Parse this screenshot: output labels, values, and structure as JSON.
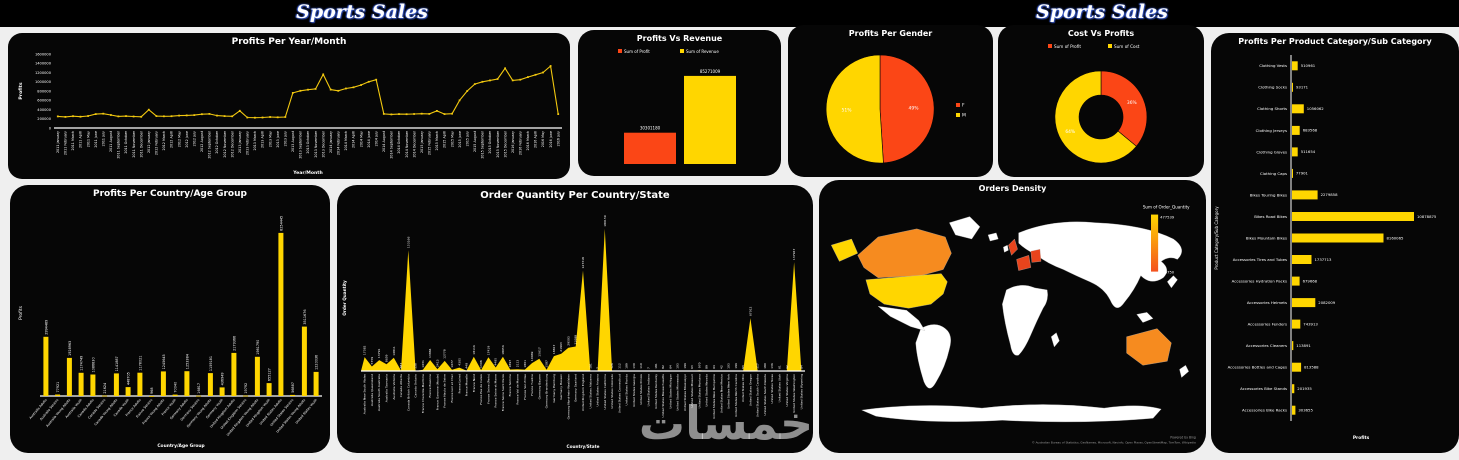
{
  "page": {
    "title_left": "Sports Sales",
    "title_right": "Sports Sales",
    "watermark": "خمسات"
  },
  "colors": {
    "yellow": "#FFD600",
    "orange": "#FB4616",
    "map_orange": "#F68B1F",
    "map_red_orange": "#E8441C",
    "white": "#FFFFFF",
    "card_bg": "#060606"
  },
  "chart_data": {
    "profits_per_month": {
      "type": "line",
      "title": "Profits Per Year/Month",
      "xlabel": "Year/Month",
      "ylabel": "Profits",
      "ylim": [
        0,
        1600000
      ],
      "ytick": 200000,
      "color": "#F2C80F",
      "categories": [
        "2011 January",
        "2011 February",
        "2011 March",
        "2011 April",
        "2011 May",
        "2011 June",
        "2011 July",
        "2011 August",
        "2011 September",
        "2011 October",
        "2011 November",
        "2011 December",
        "2012 January",
        "2012 February",
        "2012 March",
        "2012 April",
        "2012 May",
        "2012 June",
        "2012 July",
        "2012 August",
        "2012 September",
        "2012 October",
        "2012 November",
        "2012 December",
        "2013 January",
        "2013 February",
        "2013 March",
        "2013 April",
        "2013 May",
        "2013 June",
        "2013 July",
        "2013 August",
        "2013 September",
        "2013 October",
        "2013 November",
        "2013 December",
        "2014 January",
        "2014 February",
        "2014 March",
        "2014 April",
        "2014 May",
        "2014 June",
        "2014 July",
        "2014 August",
        "2014 September",
        "2014 October",
        "2014 November",
        "2014 December",
        "2015 January",
        "2015 February",
        "2015 March",
        "2015 April",
        "2015 May",
        "2015 June",
        "2015 July",
        "2015 August",
        "2015 September",
        "2015 October",
        "2015 November",
        "2015 December",
        "2016 January",
        "2016 February",
        "2016 March",
        "2016 April",
        "2016 May",
        "2016 June",
        "2016 July"
      ],
      "values": [
        250000,
        240000,
        255000,
        245000,
        260000,
        300000,
        310000,
        280000,
        250000,
        258000,
        248000,
        242000,
        395000,
        258000,
        252000,
        256000,
        268000,
        272000,
        278000,
        298000,
        305000,
        268000,
        258000,
        252000,
        372000,
        228000,
        222000,
        228000,
        238000,
        232000,
        238000,
        760000,
        805000,
        828000,
        845000,
        1160000,
        830000,
        805000,
        855000,
        880000,
        930000,
        1000000,
        1045000,
        305000,
        295000,
        300000,
        298000,
        302000,
        310000,
        305000,
        370000,
        300000,
        310000,
        600000,
        800000,
        950000,
        1000000,
        1030000,
        1060000,
        1290000,
        1030000,
        1045000,
        1100000,
        1150000,
        1200000,
        1340000,
        300000
      ]
    },
    "profits_vs_revenue": {
      "type": "bar",
      "title": "Profits Vs Revenue",
      "categories": [
        "Sum of Profit",
        "Sum of Revenue"
      ],
      "values": [
        30301180,
        85271009
      ],
      "bar_colors": [
        "#FB4616",
        "#FFD600"
      ],
      "legend": [
        {
          "label": "Sum of Profit",
          "color": "#FB4616"
        },
        {
          "label": "Sum of Revenue",
          "color": "#FFD600"
        }
      ]
    },
    "profits_per_gender": {
      "type": "pie",
      "title": "Profits Per Gender",
      "slices": [
        {
          "label": "F",
          "pct": 49,
          "color": "#FB4616"
        },
        {
          "label": "M",
          "pct": 51,
          "color": "#FFD600"
        }
      ]
    },
    "cost_vs_profits": {
      "type": "donut",
      "title": "Cost Vs Profits",
      "slices": [
        {
          "label": "Sum of Profit",
          "pct": 36,
          "color": "#FB4616"
        },
        {
          "label": "Sum of Cost",
          "pct": 64,
          "color": "#FFD600"
        }
      ]
    },
    "profits_per_subcategory": {
      "type": "hbar",
      "title": "Profits Per Product Category/Sub Category",
      "xlabel": "Profits",
      "ylabel": "Product Category/Sub Category",
      "color": "#FFD600",
      "categories": [
        "Clothing Vests",
        "Clothing Socks",
        "Clothing Shorts",
        "Clothing Jerseys",
        "Clothing Gloves",
        "Clothing Caps",
        "Bikes Touring Bikes",
        "Bikes Road Bikes",
        "Bikes Mountain Bikes",
        "Accessories Tires and Tubes",
        "Accessories Hydration Packs",
        "Accessories Helmets",
        "Accessories Fenders",
        "Accessories Cleaners",
        "Accessories Bottles and Cages",
        "Accessories Bike Stands",
        "Accessories Bike Racks"
      ],
      "values": [
        510961,
        93171,
        1056062,
        683568,
        511654,
        77901,
        2279858,
        10878875,
        8160065,
        1737713,
        679668,
        2082009,
        743913,
        113891,
        813588,
        201935,
        303655
      ]
    },
    "profits_per_age_group": {
      "type": "vbar",
      "title": "Profits Per Country/Age Group",
      "xlabel": "Country/Age Group",
      "ylabel": "Profits",
      "color": "#FFD600",
      "categories": [
        "Australia Adults",
        "Australia Seniors",
        "Australia Young Adults",
        "Australia Youth",
        "Canada Adults",
        "Canada Seniors",
        "Canada Young Adults",
        "Canada Youth",
        "France Adults",
        "France Seniors",
        "France Young Adults",
        "France Youth",
        "Germany Adults",
        "Germany Seniors",
        "Germany Young Adults",
        "Germany Youth",
        "United Kingdom Adults",
        "United Kingdom Seniors",
        "United Kingdom Young Adults",
        "United Kingdom Youth",
        "United States Adults",
        "United States Seniors",
        "United States Young Adults",
        "United States Youth"
      ],
      "values": [
        2994489,
        77921,
        1928963,
        1174749,
        1086830,
        21624,
        1141887,
        448705,
        1178021,
        968,
        1245645,
        70040,
        1253384,
        16817,
        1159181,
        436949,
        2179366,
        19792,
        1981790,
        655127,
        8254445,
        56887,
        3511676,
        1220036
      ]
    },
    "orders_per_state": {
      "type": "area",
      "title": "Order Quantity Per Country/State",
      "xlabel": "Country/State",
      "ylabel": "Order Quantity",
      "color": "#FFD600",
      "categories": [
        "Australia New South Wales",
        "Australia Queensland",
        "Australia South Australia",
        "Australia Tasmania",
        "Australia Victoria",
        "Canada Alberta",
        "Canada British Columbia",
        "Canada Ontario",
        "France Charente-Maritime",
        "France Essonne",
        "France Garonne (Haute)",
        "France Hauts de Seine",
        "France Loir et Cher",
        "France Loiret",
        "France Moselle",
        "France Nord",
        "France Pas de Calais",
        "France Seine (Paris)",
        "France Seine et Marne",
        "France Seine Saint Denis",
        "France Somme",
        "France Val de Marne",
        "France Val d'Oise",
        "France Yveline",
        "Germany Bayern",
        "Germany Brandenburg",
        "Germany Hamburg",
        "Germany Hessen",
        "Germany Nordrhein-Westfalen",
        "Germany Saarland",
        "United Kingdom England",
        "United States Alabama",
        "United States Arizona",
        "United States California",
        "United States Colorado",
        "United States Connecticut",
        "United States Florida",
        "United States Georgia",
        "United States Illinois",
        "United States Indiana",
        "United States Kentucky",
        "United States Massachusetts",
        "United States Michigan",
        "United States Minnesota",
        "United States Mississippi",
        "United States Missouri",
        "United States Montana",
        "United States Nevada",
        "United States New Hampshire",
        "United States New Mexico",
        "United States New York",
        "United States North Carolina",
        "United States Ohio",
        "United States Oregon",
        "United States South Carolina",
        "United States South Dakota",
        "United States Texas",
        "United States Utah",
        "United States Virginia",
        "United States Washington",
        "United States Wyoming"
      ],
      "values": [
        17582,
        5759,
        13791,
        8659,
        16811,
        687,
        153166,
        136,
        1631,
        13884,
        2413,
        12778,
        1677,
        4305,
        448,
        18116,
        1308,
        17419,
        4485,
        18056,
        1897,
        2113,
        1801,
        10069,
        15617,
        1587,
        18817,
        21963,
        29503,
        31088,
        127318,
        181,
        7,
        180159,
        126,
        112,
        189,
        130,
        110,
        7,
        181,
        82,
        64,
        103,
        196,
        63,
        970,
        89,
        64,
        42,
        103,
        196,
        63,
        67012,
        117,
        180,
        136,
        61,
        42,
        137947,
        84
      ]
    },
    "orders_density": {
      "type": "map",
      "title": "Orders Density",
      "legend_title": "Sum of Order_Quantity",
      "legend_max": "477539",
      "legend_min": "126750",
      "legend_colors": [
        "#FFD600",
        "#F4511E"
      ],
      "attribution1": "Powered by Bing",
      "attribution2": "© Australian Bureau of Statistics, GeoNames, Microsoft, Navinfo, Open Places, OpenStreetMap, TomTom, Wikipedia",
      "regions": {
        "canada": {
          "name": "Canada",
          "color": "#F68B1F"
        },
        "usa": {
          "name": "United States",
          "color": "#FFD600"
        },
        "alaska": {
          "name": "Alaska (United States)",
          "color": "#FFD600"
        },
        "uk": {
          "name": "United Kingdom",
          "color": "#E8441C"
        },
        "france": {
          "name": "France",
          "color": "#E8441C"
        },
        "germany": {
          "name": "Germany",
          "color": "#E8441C"
        },
        "australia": {
          "name": "Australia",
          "color": "#F68B1F"
        },
        "other": {
          "name": "Other countries",
          "color": "#FFFFFF"
        }
      }
    }
  }
}
